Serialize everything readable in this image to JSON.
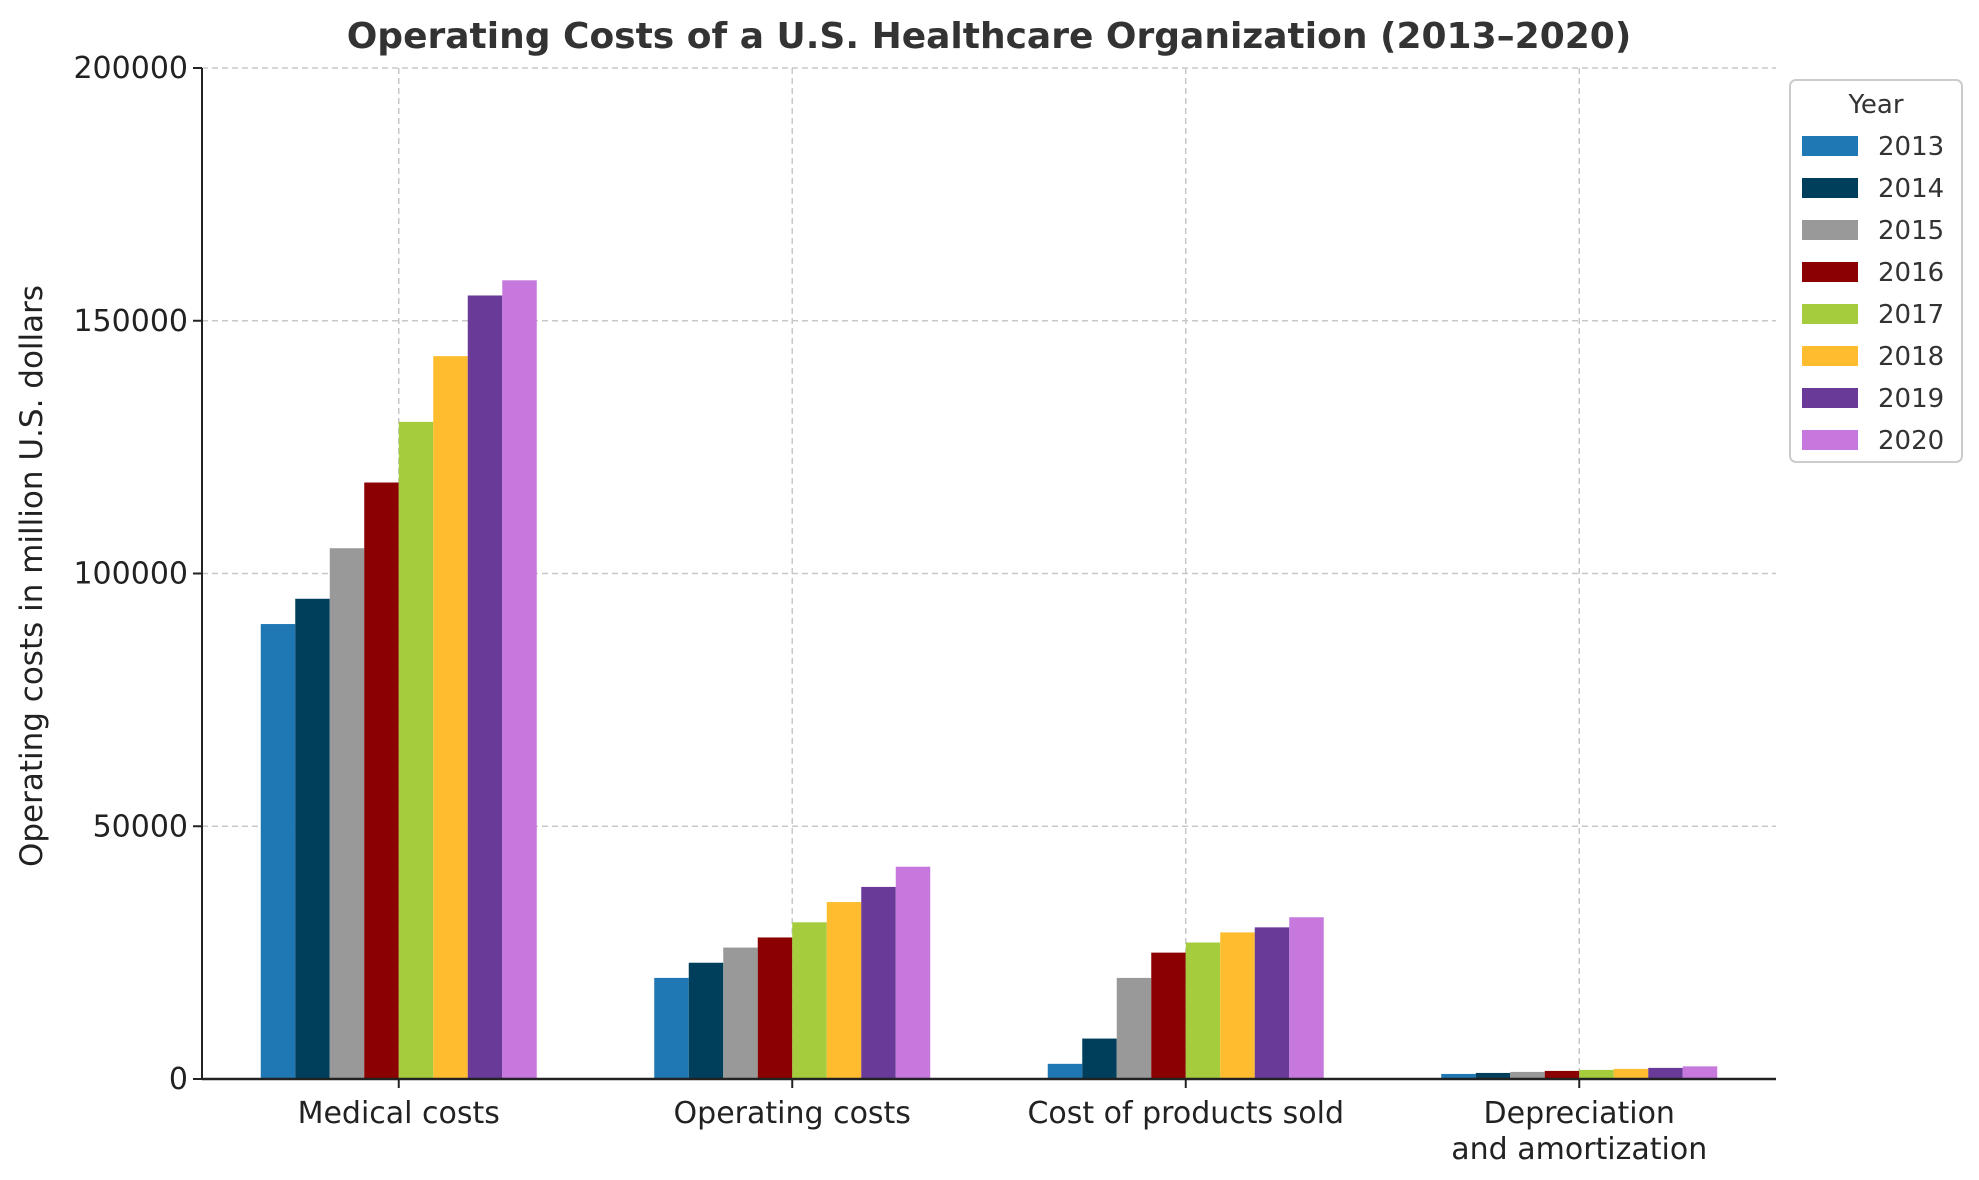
{
  "chart_data": {
    "type": "bar",
    "title": "Operating Costs of a U.S. Healthcare Organization (2013–2020)",
    "xlabel": "",
    "ylabel": "Operating costs in million U.S. dollars",
    "ylim": [
      0,
      200000
    ],
    "yticks": [
      "0",
      "50000",
      "100000",
      "150000",
      "200000"
    ],
    "categories": [
      [
        "Medical costs"
      ],
      [
        "Operating costs"
      ],
      [
        "Cost of products sold"
      ],
      [
        "Depreciation",
        "and amortization"
      ]
    ],
    "grid": true,
    "legend": {
      "title": "Year",
      "position": "top-right"
    },
    "series": [
      {
        "name": "2013",
        "color": "#1f77b4",
        "values": [
          90000,
          20000,
          3000,
          1000
        ]
      },
      {
        "name": "2014",
        "color": "#003f5c",
        "values": [
          95000,
          23000,
          8000,
          1200
        ]
      },
      {
        "name": "2015",
        "color": "#999999",
        "values": [
          105000,
          26000,
          20000,
          1400
        ]
      },
      {
        "name": "2016",
        "color": "#8b0000",
        "values": [
          118000,
          28000,
          25000,
          1600
        ]
      },
      {
        "name": "2017",
        "color": "#a4cc3c",
        "values": [
          130000,
          31000,
          27000,
          1800
        ]
      },
      {
        "name": "2018",
        "color": "#ffbc2f",
        "values": [
          143000,
          35000,
          29000,
          2000
        ]
      },
      {
        "name": "2019",
        "color": "#6a3a99",
        "values": [
          155000,
          38000,
          30000,
          2200
        ]
      },
      {
        "name": "2020",
        "color": "#c678dd",
        "values": [
          158000,
          42000,
          32000,
          2500
        ]
      }
    ]
  }
}
